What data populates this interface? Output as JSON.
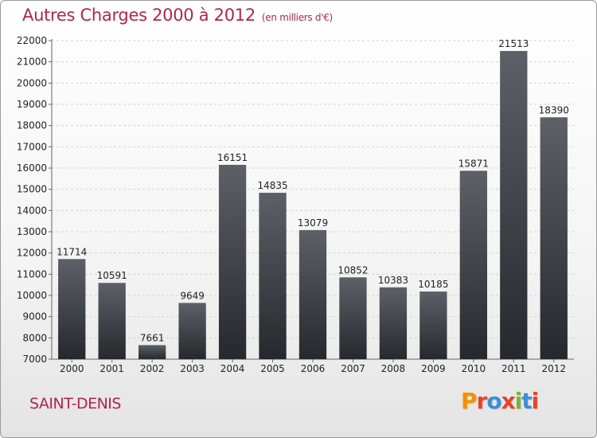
{
  "title": "Autres Charges 2000 à 2012",
  "unit": "(en milliers d'€)",
  "place": "SAINT-DENIS",
  "logo": [
    "P",
    "r",
    "o",
    "x",
    "i",
    "t",
    "i"
  ],
  "colors": {
    "title": "#b0254f",
    "logo": [
      "#f39200",
      "#e8432a",
      "#3a8fd6",
      "#e8432a",
      "#7bb530",
      "#3a8fd6",
      "#e8432a"
    ]
  },
  "chart_data": {
    "type": "bar",
    "title": "Autres Charges 2000 à 2012",
    "categories": [
      "2000",
      "2001",
      "2002",
      "2003",
      "2004",
      "2005",
      "2006",
      "2007",
      "2008",
      "2009",
      "2010",
      "2011",
      "2012"
    ],
    "values": [
      11714,
      10591,
      7661,
      9649,
      16151,
      14835,
      13079,
      10852,
      10383,
      10185,
      15871,
      21513,
      18390
    ],
    "ylim": [
      7000,
      22000
    ],
    "yticks": [
      7000,
      8000,
      9000,
      10000,
      11000,
      12000,
      13000,
      14000,
      15000,
      16000,
      17000,
      18000,
      19000,
      20000,
      21000,
      22000
    ],
    "grid": true,
    "xlabel": "",
    "ylabel": ""
  }
}
